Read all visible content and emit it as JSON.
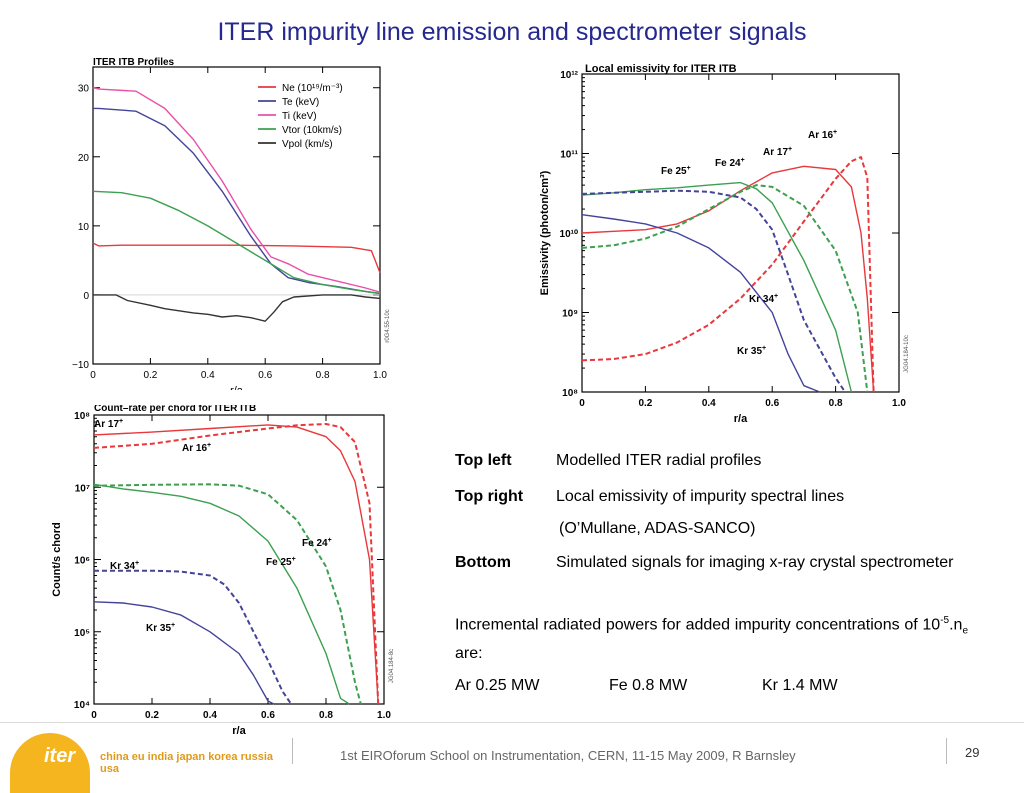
{
  "slide": {
    "title": "ITER impurity line emission and spectrometer signals",
    "footer": "1st EIROforum School on Instrumentation, CERN, 11-15 May 2009, R Barnsley",
    "page_number": "29",
    "logo": {
      "word": "iter",
      "countries": "china eu india japan korea russia usa"
    }
  },
  "description": {
    "top_left_label": "Top left",
    "top_left_text": "Modelled ITER radial profiles",
    "top_right_label": "Top right",
    "top_right_text": "Local emissivity of impurity spectral lines",
    "top_right_credit": "(O’Mullane, ADAS-SANCO)",
    "bottom_label": "Bottom",
    "bottom_text": "Simulated signals for imaging x-ray crystal spectrometer",
    "incremental_prefix": "Incremental radiated powers for added impurity concentrations of 10",
    "incremental_sup": "-5",
    "incremental_mid": ".n",
    "incremental_sub": "e",
    "incremental_suffix": " are:",
    "powers": [
      "Ar 0.25 MW",
      "Fe 0.8 MW",
      "Kr 1.4 MW"
    ]
  },
  "chart_data": [
    {
      "id": "profiles",
      "type": "line",
      "title": "ITER ITB Profiles",
      "xlabel": "r/a",
      "ylabel": "",
      "xlim": [
        0,
        1.0
      ],
      "ylim": [
        -10,
        33
      ],
      "xticks": [
        "0",
        "0.2",
        "0.4",
        "0.6",
        "0.8",
        "1.0"
      ],
      "yticks": [
        "−10",
        "0",
        "10",
        "20",
        "30"
      ],
      "side_tag": "r0G4.55-10c",
      "legend": {
        "position": "top-right"
      },
      "series": [
        {
          "name": "Ne (10¹⁹/m⁻³)",
          "color": "#e8383b",
          "x": [
            0,
            0.02,
            0.1,
            0.3,
            0.5,
            0.7,
            0.9,
            0.97,
            1.0
          ],
          "y": [
            7.5,
            7.1,
            7.2,
            7.2,
            7.2,
            7.1,
            6.9,
            6.4,
            3.2
          ]
        },
        {
          "name": "Te (keV)",
          "color": "#43449a",
          "x": [
            0,
            0.02,
            0.15,
            0.25,
            0.35,
            0.45,
            0.55,
            0.62,
            0.68,
            0.75,
            0.85,
            0.95,
            1.0
          ],
          "y": [
            27,
            27,
            26.6,
            24.5,
            20.5,
            15,
            8.5,
            4.5,
            2.5,
            1.8,
            1.2,
            0.5,
            0.2
          ]
        },
        {
          "name": "Ti (keV)",
          "color": "#e850a8",
          "x": [
            0,
            0.02,
            0.15,
            0.25,
            0.35,
            0.45,
            0.55,
            0.62,
            0.68,
            0.75,
            0.85,
            0.95,
            1.0
          ],
          "y": [
            30,
            29.8,
            29.5,
            27,
            22.5,
            16.5,
            9.5,
            5.5,
            4.5,
            3,
            2,
            1,
            0.4
          ]
        },
        {
          "name": "Vtor (10km/s)",
          "color": "#3ca050",
          "x": [
            0,
            0.1,
            0.2,
            0.3,
            0.4,
            0.5,
            0.6,
            0.7,
            0.8,
            0.9,
            1.0
          ],
          "y": [
            15,
            14.8,
            14,
            12.2,
            10,
            7.5,
            5,
            2.5,
            1.5,
            0.8,
            0.2
          ]
        },
        {
          "name": "Vpol (km/s)",
          "color": "#333333",
          "x": [
            0,
            0.08,
            0.12,
            0.2,
            0.25,
            0.3,
            0.35,
            0.4,
            0.45,
            0.5,
            0.55,
            0.6,
            0.63,
            0.66,
            0.7,
            0.8,
            0.9,
            0.95,
            1.0
          ],
          "y": [
            0,
            0,
            -0.8,
            -1.5,
            -2,
            -2.3,
            -2.6,
            -2.8,
            -3.2,
            -3,
            -3.3,
            -3.8,
            -2.5,
            -1,
            -0.3,
            0,
            0,
            -0.3,
            -0.5
          ]
        }
      ]
    },
    {
      "id": "emissivity",
      "type": "line",
      "title": "Local emissivity for ITER ITB",
      "xlabel": "r/a",
      "ylabel": "Emissivity (photon/cm³)",
      "yscale": "log",
      "xlim": [
        0,
        1.0
      ],
      "ylim": [
        100000000.0,
        1000000000000.0
      ],
      "xticks": [
        "0",
        "0.2",
        "0.4",
        "0.6",
        "0.8",
        "1.0"
      ],
      "yticks": [
        "10⁸",
        "10⁹",
        "10¹⁰",
        "10¹¹",
        "10¹²"
      ],
      "side_tag": "JG04.184-10c",
      "series": [
        {
          "name": "Ar 17+",
          "color": "#e8383b",
          "dash": false,
          "x": [
            0,
            0.1,
            0.2,
            0.3,
            0.4,
            0.5,
            0.6,
            0.7,
            0.8,
            0.85,
            0.88,
            0.9,
            0.92
          ],
          "y": [
            10000000000.0,
            10500000000.0,
            11000000000.0,
            13000000000.0,
            19000000000.0,
            34000000000.0,
            57000000000.0,
            69000000000.0,
            63000000000.0,
            38000000000.0,
            10000000000.0,
            1500000000.0,
            100000000.0
          ]
        },
        {
          "name": "Ar 16+",
          "color": "#e8383b",
          "dash": true,
          "x": [
            0,
            0.1,
            0.2,
            0.3,
            0.4,
            0.5,
            0.6,
            0.7,
            0.8,
            0.85,
            0.88,
            0.9,
            0.92
          ],
          "y": [
            250000000.0,
            260000000.0,
            300000000.0,
            420000000.0,
            700000000.0,
            1500000000.0,
            4000000000.0,
            14000000000.0,
            48000000000.0,
            80000000000.0,
            90000000000.0,
            50000000000.0,
            100000000.0
          ]
        },
        {
          "name": "Fe 24+",
          "color": "#3ca050",
          "dash": true,
          "x": [
            0,
            0.1,
            0.2,
            0.3,
            0.4,
            0.5,
            0.55,
            0.6,
            0.7,
            0.8,
            0.87,
            0.9
          ],
          "y": [
            6500000000.0,
            7000000000.0,
            8500000000.0,
            12000000000.0,
            20000000000.0,
            33000000000.0,
            40000000000.0,
            38000000000.0,
            22000000000.0,
            6000000000.0,
            1000000000.0,
            100000000.0
          ]
        },
        {
          "name": "Fe 25+",
          "color": "#3ca050",
          "dash": false,
          "x": [
            0,
            0.1,
            0.2,
            0.3,
            0.4,
            0.5,
            0.55,
            0.6,
            0.7,
            0.8,
            0.85
          ],
          "y": [
            30000000000.0,
            32000000000.0,
            35000000000.0,
            37000000000.0,
            40000000000.0,
            43000000000.0,
            36000000000.0,
            24000000000.0,
            4500000000.0,
            600000000.0,
            100000000.0
          ]
        },
        {
          "name": "Kr 34+",
          "color": "#43449a",
          "dash": true,
          "x": [
            0,
            0.1,
            0.2,
            0.3,
            0.4,
            0.5,
            0.55,
            0.6,
            0.65,
            0.7,
            0.8,
            0.83
          ],
          "y": [
            31000000000.0,
            32000000000.0,
            33000000000.0,
            34000000000.0,
            33000000000.0,
            28000000000.0,
            20000000000.0,
            11000000000.0,
            3000000000.0,
            800000000.0,
            150000000.0,
            100000000.0
          ]
        },
        {
          "name": "Kr 35+",
          "color": "#43449a",
          "dash": false,
          "x": [
            0,
            0.1,
            0.2,
            0.3,
            0.4,
            0.5,
            0.6,
            0.65,
            0.7,
            0.75
          ],
          "y": [
            17000000000.0,
            15000000000.0,
            13000000000.0,
            10000000000.0,
            6500000000.0,
            3200000000.0,
            1000000000.0,
            300000000.0,
            120000000.0,
            100000000.0
          ]
        }
      ],
      "labels": [
        "Ar 16+",
        "Ar 17+",
        "Fe 24+",
        "Fe 25+",
        "Kr 34+",
        "Kr 35+"
      ]
    },
    {
      "id": "countrate",
      "type": "line",
      "title": "Count–rate per chord for ITER ITB",
      "xlabel": "r/a",
      "ylabel": "Count/s chord",
      "yscale": "log",
      "xlim": [
        0,
        1.0
      ],
      "ylim": [
        10000.0,
        100000000.0
      ],
      "xticks": [
        "0",
        "0.2",
        "0.4",
        "0.6",
        "0.8",
        "1.0"
      ],
      "yticks": [
        "10⁴",
        "10⁵",
        "10⁶",
        "10⁷",
        "10⁸"
      ],
      "side_tag": "JG04.184-8c",
      "series": [
        {
          "name": "Ar 17+",
          "color": "#e8383b",
          "dash": false,
          "x": [
            0,
            0.2,
            0.4,
            0.6,
            0.7,
            0.8,
            0.85,
            0.9,
            0.95,
            0.98
          ],
          "y": [
            53000000.0,
            58000000.0,
            65000000.0,
            73000000.0,
            68000000.0,
            50000000.0,
            32000000.0,
            12000000.0,
            1000000.0,
            10000.0
          ]
        },
        {
          "name": "Ar 16+",
          "color": "#e8383b",
          "dash": true,
          "x": [
            0,
            0.2,
            0.4,
            0.6,
            0.7,
            0.8,
            0.85,
            0.9,
            0.95,
            0.98
          ],
          "y": [
            35000000.0,
            40000000.0,
            52000000.0,
            65000000.0,
            72000000.0,
            75000000.0,
            68000000.0,
            42000000.0,
            6000000.0,
            10000.0
          ]
        },
        {
          "name": "Fe 24+",
          "color": "#3ca050",
          "dash": true,
          "x": [
            0,
            0.2,
            0.4,
            0.5,
            0.6,
            0.7,
            0.8,
            0.85,
            0.9,
            0.92
          ],
          "y": [
            10500000.0,
            10800000.0,
            11000000.0,
            10500000.0,
            8000000.0,
            3500000.0,
            800000.0,
            200000.0,
            20000.0,
            10000.0
          ]
        },
        {
          "name": "Fe 25+",
          "color": "#3ca050",
          "dash": false,
          "x": [
            0,
            0.1,
            0.2,
            0.3,
            0.4,
            0.5,
            0.6,
            0.7,
            0.8,
            0.85,
            0.88
          ],
          "y": [
            11000000.0,
            9500000.0,
            8500000.0,
            7500000.0,
            6000000.0,
            4000000.0,
            1800000.0,
            400000.0,
            50000.0,
            12000.0,
            10000.0
          ]
        },
        {
          "name": "Kr 34+",
          "color": "#43449a",
          "dash": true,
          "x": [
            0,
            0.1,
            0.2,
            0.3,
            0.4,
            0.45,
            0.5,
            0.55,
            0.6,
            0.65,
            0.68
          ],
          "y": [
            700000.0,
            700000.0,
            700000.0,
            680000.0,
            600000.0,
            450000.0,
            250000.0,
            100000.0,
            40000.0,
            15000.0,
            10000.0
          ]
        },
        {
          "name": "Kr 35+",
          "color": "#43449a",
          "dash": false,
          "x": [
            0,
            0.1,
            0.2,
            0.3,
            0.4,
            0.5,
            0.55,
            0.6,
            0.62
          ],
          "y": [
            260000.0,
            250000.0,
            220000.0,
            170000.0,
            100000.0,
            50000.0,
            25000.0,
            11000.0,
            10000.0
          ]
        }
      ],
      "labels": [
        "Ar 17+",
        "Ar 16+",
        "Fe 24+",
        "Fe 25+",
        "Kr 34+",
        "Kr 35+"
      ]
    }
  ]
}
